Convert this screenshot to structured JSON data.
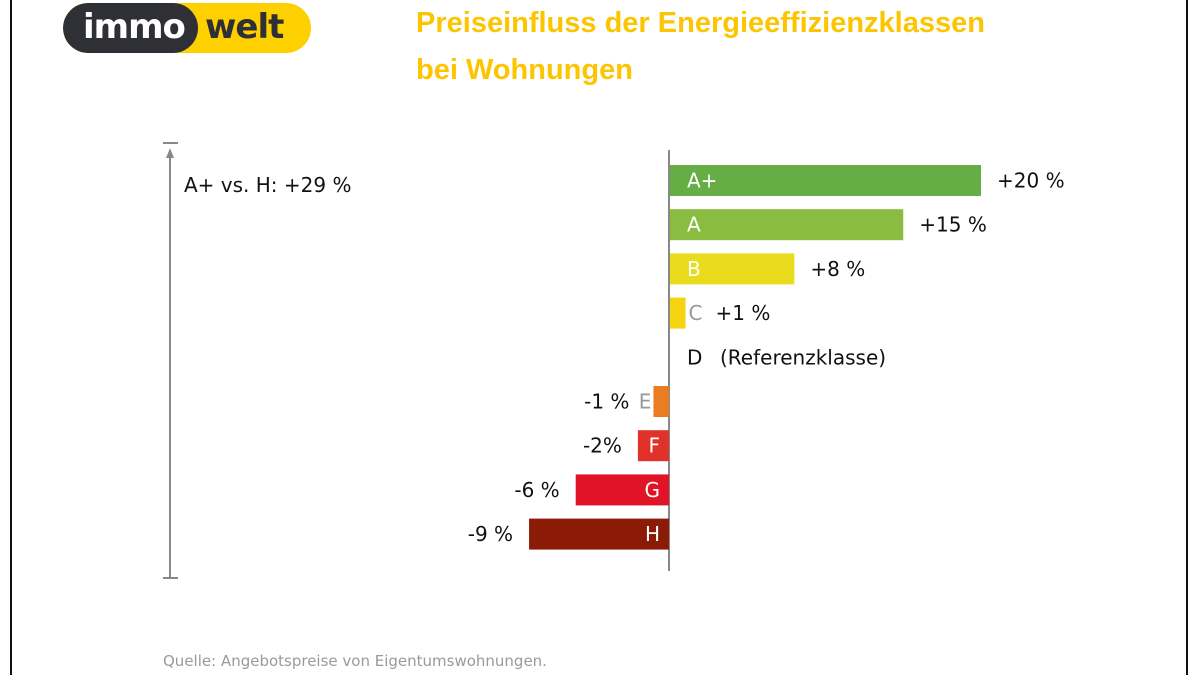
{
  "logo": {
    "part1": "immo",
    "part2": "welt"
  },
  "title_line1": "Preiseinfluss der Energieeffizienzklassen",
  "title_line2": "bei Wohnungen",
  "range_label": "A+ vs. H: +29 %",
  "source": "Quelle: Angebotspreise von Eigentumswohnungen.",
  "colors": {
    "title": "#fcc500",
    "axis": "#888888"
  },
  "chart_data": {
    "type": "bar",
    "orientation": "horizontal",
    "title": "Preiseinfluss der Energieeffizienzklassen bei Wohnungen",
    "unit": "%",
    "categories": [
      "A+",
      "A",
      "B",
      "C",
      "D",
      "E",
      "F",
      "G",
      "H"
    ],
    "values": [
      20,
      15,
      8,
      1,
      0,
      -1,
      -2,
      -6,
      -9
    ],
    "value_labels": [
      "+20 %",
      "+15 %",
      "+8 %",
      "+1 %",
      "(Referenzklasse)",
      "-1 %",
      "-2%",
      "-6 %",
      "-9 %"
    ],
    "colors": [
      "#66ad45",
      "#8abc41",
      "#e8dc1c",
      "#f5d511",
      "#ffffff",
      "#ea7d24",
      "#e0312a",
      "#e01426",
      "#8b1a06"
    ],
    "reference_class": "D",
    "annotation": "A+ vs. H: +29 %"
  }
}
